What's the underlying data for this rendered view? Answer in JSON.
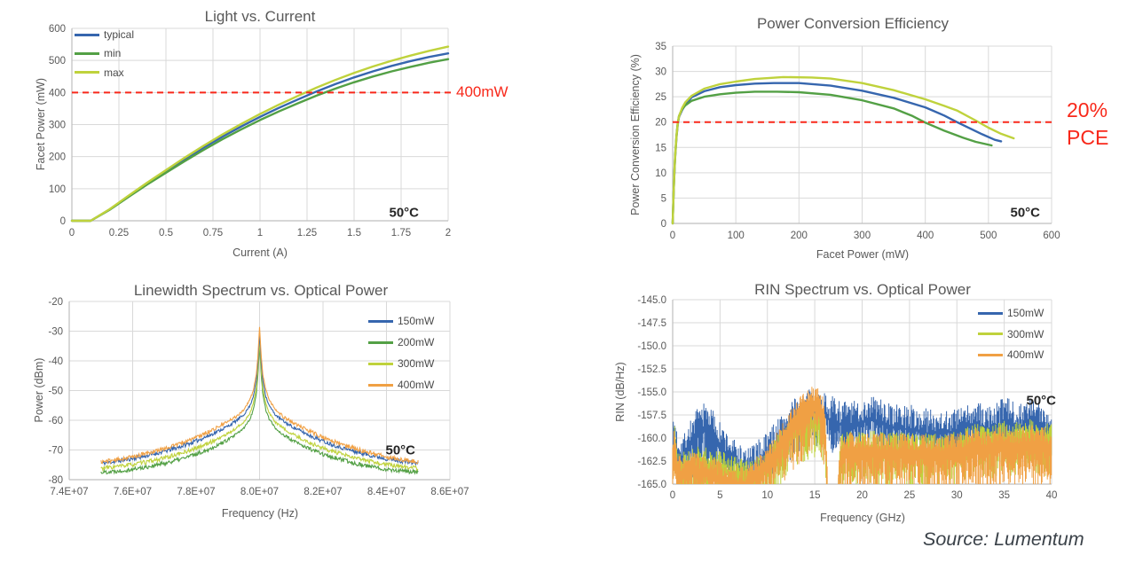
{
  "source_note": "Source: Lumentum",
  "colors": {
    "blue": "#3666AE",
    "green": "#53A045",
    "yellow_green": "#BFD23C",
    "orange": "#F0A044",
    "red": "#F8281A",
    "grid": "#D9D9D9",
    "axis": "#BFBFBF",
    "tick_text": "#595959",
    "legend_text": "#4A4A4A",
    "annotation_text": "#262626",
    "source_text": "#3B4249"
  },
  "chart_data": [
    {
      "id": "light-vs-current",
      "type": "line",
      "title": "Light vs. Current",
      "xlabel": "Current (A)",
      "ylabel": "Facet Power (mW)",
      "annotation": "50°C",
      "xlim": [
        0,
        2
      ],
      "ylim": [
        0,
        600
      ],
      "xticks": {
        "labels": [
          "0",
          "0.25",
          "0.5",
          "0.75",
          "1",
          "1.25",
          "1.5",
          "1.75",
          "2"
        ],
        "values": [
          0,
          0.25,
          0.5,
          0.75,
          1,
          1.25,
          1.5,
          1.75,
          2
        ]
      },
      "yticks": {
        "labels": [
          "0",
          "100",
          "200",
          "300",
          "400",
          "500",
          "600"
        ],
        "values": [
          0,
          100,
          200,
          300,
          400,
          500,
          600
        ]
      },
      "threshold": {
        "value": 400,
        "label": "400mW"
      },
      "series": [
        {
          "name": "typical",
          "color": "blue",
          "x": [
            0,
            0.1,
            0.2,
            0.3,
            0.4,
            0.5,
            0.6,
            0.7,
            0.8,
            0.9,
            1,
            1.1,
            1.2,
            1.3,
            1.4,
            1.5,
            1.6,
            1.7,
            1.8,
            1.9,
            2
          ],
          "y": [
            0,
            0,
            35,
            76,
            116,
            154,
            192,
            228,
            262,
            294,
            324,
            352,
            378,
            403,
            426,
            447,
            466,
            483,
            498,
            511,
            522
          ]
        },
        {
          "name": "min",
          "color": "green",
          "x": [
            0,
            0.1,
            0.2,
            0.3,
            0.4,
            0.5,
            0.6,
            0.7,
            0.8,
            0.9,
            1,
            1.1,
            1.2,
            1.3,
            1.4,
            1.5,
            1.6,
            1.7,
            1.8,
            1.9,
            2
          ],
          "y": [
            0,
            0,
            34,
            74,
            113,
            150,
            186,
            221,
            254,
            285,
            314,
            341,
            366,
            390,
            412,
            432,
            450,
            466,
            480,
            493,
            504
          ]
        },
        {
          "name": "max",
          "color": "yellow_green",
          "x": [
            0,
            0.1,
            0.2,
            0.3,
            0.4,
            0.5,
            0.6,
            0.7,
            0.8,
            0.9,
            1,
            1.1,
            1.2,
            1.3,
            1.4,
            1.5,
            1.6,
            1.7,
            1.8,
            1.9,
            2
          ],
          "y": [
            0,
            0,
            36,
            78,
            119,
            158,
            197,
            234,
            269,
            302,
            333,
            362,
            389,
            415,
            439,
            461,
            481,
            499,
            515,
            530,
            543
          ]
        }
      ],
      "draw_order": [
        0,
        1,
        2
      ]
    },
    {
      "id": "power-conversion-efficiency",
      "type": "line",
      "title": "Power Conversion Efficiency",
      "xlabel": "Facet Power (mW)",
      "ylabel": "Power Conversion Efficiency (%)",
      "annotation": "50°C",
      "xlim": [
        0,
        600
      ],
      "ylim": [
        0,
        35
      ],
      "xticks": {
        "labels": [
          "0",
          "100",
          "200",
          "300",
          "400",
          "500",
          "600"
        ],
        "values": [
          0,
          100,
          200,
          300,
          400,
          500,
          600
        ]
      },
      "yticks": {
        "labels": [
          "0",
          "5",
          "10",
          "15",
          "20",
          "25",
          "30",
          "35"
        ],
        "values": [
          0,
          5,
          10,
          15,
          20,
          25,
          30,
          35
        ]
      },
      "threshold": {
        "value": 20,
        "label_lines": [
          "20%",
          "PCE"
        ]
      },
      "series": [
        {
          "name": "typical",
          "color": "blue",
          "x": [
            0,
            1,
            2,
            3,
            4,
            6,
            8,
            10,
            15,
            20,
            30,
            50,
            75,
            100,
            130,
            160,
            200,
            250,
            300,
            350,
            400,
            430,
            450,
            470,
            490,
            510,
            520
          ],
          "y": [
            0,
            4,
            7.5,
            10.5,
            13,
            17,
            19.5,
            21,
            22.4,
            23.4,
            24.9,
            26.1,
            26.9,
            27.3,
            27.6,
            27.7,
            27.7,
            27.2,
            26.2,
            24.8,
            22.9,
            21.3,
            20.0,
            18.8,
            17.6,
            16.5,
            16.2
          ]
        },
        {
          "name": "min",
          "color": "green",
          "x": [
            0,
            1,
            2,
            3,
            4,
            6,
            8,
            10,
            15,
            20,
            30,
            50,
            75,
            100,
            130,
            165,
            200,
            250,
            300,
            350,
            380,
            400,
            430,
            460,
            480,
            505
          ],
          "y": [
            0,
            4.2,
            7.8,
            11,
            13.5,
            17.4,
            19.8,
            21.2,
            22.6,
            23.3,
            24.2,
            25.0,
            25.5,
            25.8,
            26.0,
            26.0,
            25.9,
            25.4,
            24.3,
            22.7,
            21.2,
            19.9,
            18.3,
            16.9,
            16.1,
            15.4
          ]
        },
        {
          "name": "max",
          "color": "yellow_green",
          "x": [
            0,
            1,
            2,
            3,
            4,
            6,
            8,
            10,
            15,
            20,
            30,
            50,
            75,
            100,
            130,
            175,
            220,
            250,
            300,
            350,
            400,
            430,
            450,
            480,
            500,
            520,
            540
          ],
          "y": [
            0,
            4.1,
            7.6,
            10.8,
            13.2,
            17.2,
            19.7,
            21.1,
            22.8,
            23.9,
            25.2,
            26.6,
            27.5,
            28.0,
            28.5,
            28.9,
            28.8,
            28.6,
            27.7,
            26.3,
            24.5,
            23.2,
            22.3,
            20.3,
            18.9,
            17.7,
            16.8
          ]
        }
      ],
      "draw_order": [
        0,
        1,
        2
      ]
    },
    {
      "id": "linewidth-spectrum",
      "type": "spectrum",
      "title": "Linewidth Spectrum vs. Optical Power",
      "xlabel": "Frequency (Hz)",
      "ylabel": "Power (dBm)",
      "annotation": "50°C",
      "xlim": [
        74,
        86
      ],
      "ylim": [
        -80,
        -20
      ],
      "xticks": {
        "labels": [
          "7.4E+07",
          "7.6E+07",
          "7.8E+07",
          "8.0E+07",
          "8.2E+07",
          "8.4E+07",
          "8.6E+07"
        ],
        "values": [
          74,
          76,
          78,
          80,
          82,
          84,
          86
        ]
      },
      "yticks": {
        "labels": [
          "-20",
          "-30",
          "-40",
          "-50",
          "-60",
          "-70",
          "-80"
        ],
        "values": [
          -20,
          -30,
          -40,
          -50,
          -60,
          -70,
          -80
        ]
      },
      "center_mhz": 80,
      "range_mhz": [
        75,
        85
      ],
      "offsets_mhz": [
        0,
        0.05,
        0.1,
        0.2,
        0.3,
        0.5,
        0.75,
        1,
        1.5,
        2,
        2.5,
        3,
        3.5,
        4,
        4.5,
        5
      ],
      "series": [
        {
          "name": "150mW",
          "color": "blue",
          "seed": 11,
          "values": [
            -30.5,
            -40,
            -46.5,
            -52,
            -55,
            -58.2,
            -60.3,
            -62,
            -64.7,
            -67,
            -68.9,
            -70.5,
            -71.8,
            -72.9,
            -73.8,
            -74.5
          ]
        },
        {
          "name": "200mW",
          "color": "green",
          "seed": 22,
          "values": [
            -34.5,
            -44.5,
            -51,
            -56.5,
            -59.5,
            -62.7,
            -64.9,
            -66.6,
            -69.3,
            -71.4,
            -73.1,
            -74.5,
            -75.6,
            -76.5,
            -77.1,
            -77.5
          ]
        },
        {
          "name": "300mW",
          "color": "yellow_green",
          "seed": 33,
          "values": [
            -32.5,
            -42.5,
            -49,
            -54.5,
            -57.5,
            -60.7,
            -62.8,
            -64.5,
            -67.2,
            -69.4,
            -71.2,
            -72.7,
            -73.9,
            -74.9,
            -75.6,
            -76.2
          ]
        },
        {
          "name": "400mW",
          "color": "orange",
          "seed": 44,
          "values": [
            -28.5,
            -38,
            -44.5,
            -50,
            -53,
            -56.5,
            -58.8,
            -60.5,
            -63.3,
            -65.8,
            -67.8,
            -69.5,
            -71,
            -72.3,
            -73.3,
            -74
          ]
        }
      ],
      "draw_order": [
        1,
        2,
        0,
        3
      ]
    },
    {
      "id": "rin-spectrum",
      "type": "band",
      "title": "RIN Spectrum vs. Optical Power",
      "xlabel": "Frequency (GHz)",
      "ylabel": "RIN (dB/Hz)",
      "annotation": "50°C",
      "xlim": [
        0,
        40
      ],
      "ylim": [
        -165,
        -145
      ],
      "xticks": {
        "labels": [
          "0",
          "5",
          "10",
          "15",
          "20",
          "25",
          "30",
          "35",
          "40"
        ],
        "values": [
          0,
          5,
          10,
          15,
          20,
          25,
          30,
          35,
          40
        ]
      },
      "yticks": {
        "labels": [
          "-145.0",
          "-147.5",
          "-150.0",
          "-152.5",
          "-155.0",
          "-157.5",
          "-160.0",
          "-162.5",
          "-165.0"
        ],
        "values": [
          -145,
          -147.5,
          -150,
          -152.5,
          -155,
          -157.5,
          -160,
          -162.5,
          -165
        ]
      },
      "env_x": [
        0,
        0.2,
        0.5,
        1,
        2,
        2.5,
        3,
        3.5,
        4,
        4.5,
        5,
        6,
        7,
        7.5,
        8,
        9,
        10,
        11,
        12,
        13,
        14,
        14.5,
        15,
        15.4,
        15.8,
        16.1,
        16.4,
        16.6,
        17.4,
        17.7,
        18,
        19,
        20,
        21,
        22,
        23,
        24,
        25,
        26,
        27,
        28,
        29,
        30,
        31,
        32,
        33,
        34,
        35,
        36,
        37,
        38,
        39,
        40
      ],
      "series": [
        {
          "name": "150mW",
          "color": "blue",
          "seed": 7,
          "amp": 1.3,
          "env": [
            -160,
            -158.5,
            -160.5,
            -160.8,
            -159,
            -158.2,
            -157.6,
            -157.3,
            -157.8,
            -158.6,
            -159.6,
            -160.8,
            -161.8,
            -162.2,
            -162.3,
            -161.5,
            -160.4,
            -159.2,
            -158,
            -156.9,
            -156.2,
            -156,
            -155.9,
            -156,
            -156.2,
            -156.3,
            -156.5,
            -156.6,
            -157,
            -157.1,
            -157.2,
            -157.3,
            -157,
            -156.6,
            -157,
            -157.5,
            -157.7,
            -157.6,
            -158,
            -158.1,
            -158,
            -158.1,
            -158,
            -157.7,
            -157.3,
            -157.8,
            -157.6,
            -156.8,
            -157.2,
            -157.3,
            -157,
            -157.5,
            -157.8
          ],
          "depth_x": [
            0,
            2,
            2.4,
            4.6,
            5,
            6.8,
            8.6,
            9,
            11,
            12,
            17,
            18,
            40
          ],
          "depth": [
            5,
            5.5,
            6.5,
            6.5,
            5.5,
            3.2,
            3.2,
            3.8,
            4.5,
            5,
            5,
            4.5,
            4.5
          ]
        },
        {
          "name": "300mW",
          "color": "yellow_green",
          "seed": 8,
          "amp": 0.9,
          "env": [
            -161,
            -159.2,
            -162,
            -162.3,
            -161.8,
            -161.8,
            -161.8,
            -161.9,
            -162,
            -162.1,
            -162.2,
            -162.6,
            -163,
            -163.1,
            -163.2,
            -162.8,
            -162,
            -160.6,
            -159.3,
            -158.2,
            -157.6,
            -157.5,
            -157.4,
            -157.6,
            -158.1,
            -158.8,
            -166,
            -166,
            -166,
            -160.8,
            -160.3,
            -160.1,
            -160.2,
            -160,
            -160.2,
            -160.3,
            -160.2,
            -160.3,
            -160.4,
            -160.3,
            -160.4,
            -160.3,
            -160.2,
            -159.6,
            -159.2,
            -159.6,
            -159.3,
            -159,
            -159.2,
            -159,
            -158.8,
            -159.2,
            -159.4
          ],
          "depth_x": [
            0,
            40
          ],
          "depth": [
            5,
            5
          ]
        },
        {
          "name": "400mW",
          "color": "orange",
          "seed": 9,
          "amp": 0.9,
          "env": [
            -160.5,
            -159.3,
            -162.5,
            -162.8,
            -162.4,
            -162.5,
            -162.6,
            -162.7,
            -162.9,
            -163,
            -163.2,
            -163.6,
            -164,
            -164,
            -163.8,
            -162.8,
            -161.6,
            -160.3,
            -158.6,
            -157,
            -155.6,
            -155.2,
            -155.1,
            -155.4,
            -156.3,
            -157.8,
            -166,
            -166,
            -166,
            -160.8,
            -160.4,
            -160.3,
            -160.4,
            -160.3,
            -160.4,
            -160.5,
            -160.4,
            -160.5,
            -160.5,
            -160.4,
            -160.5,
            -160.4,
            -160.3,
            -160,
            -159.7,
            -160,
            -159.8,
            -159.6,
            -159.8,
            -159.6,
            -159.4,
            -159.7,
            -159.8
          ],
          "depth_x": [
            0,
            10,
            11,
            12.5,
            13,
            16,
            17.7,
            18,
            40
          ],
          "depth": [
            5,
            5,
            5.5,
            6,
            6.5,
            6.5,
            6,
            6,
            6
          ]
        }
      ],
      "draw_order": [
        0,
        1,
        2
      ]
    }
  ]
}
